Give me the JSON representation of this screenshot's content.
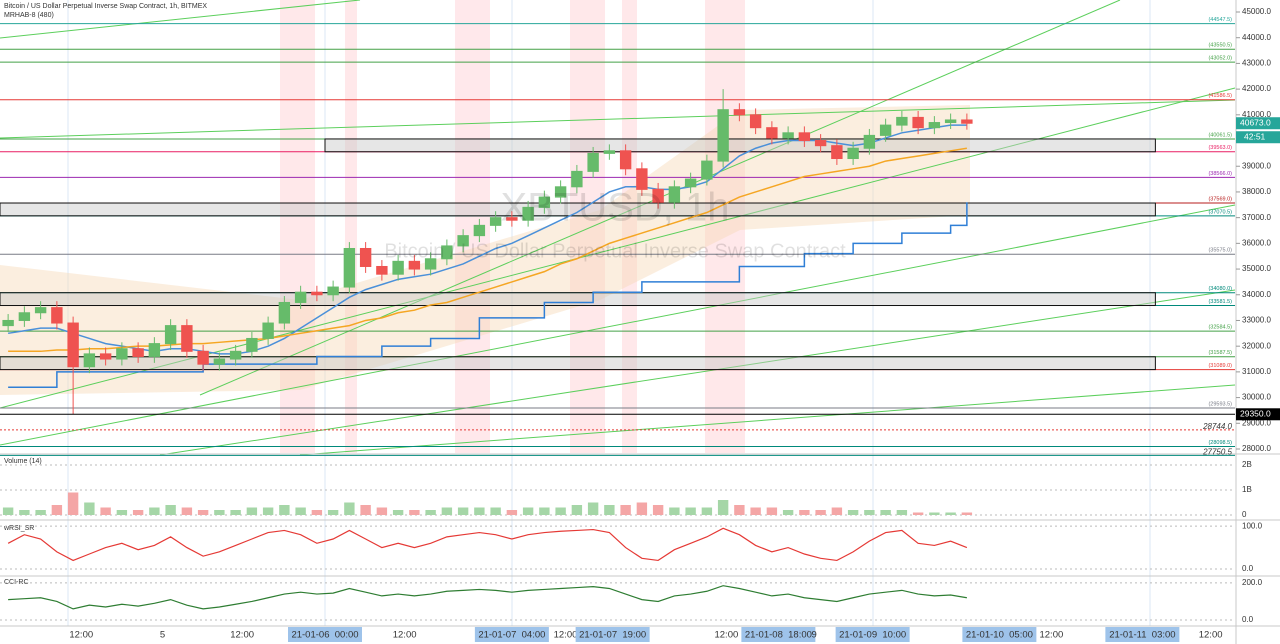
{
  "chart_data": {
    "type": "candlestick",
    "title": "Bitcoin / US Dollar Perpetual Inverse Swap Contract, 1h, BITMEX",
    "subtitle": "MRHAB-8 (480)",
    "watermark": "XBTUSD, 1h",
    "watermark_sub": "Bitcoin / US Dollar Perpetual Inverse Swap Contract",
    "up_color": "#66bb6a",
    "down_color": "#ef5350",
    "open": [
      32800,
      33000,
      33300,
      33500,
      32900,
      31200,
      31700,
      31500,
      31900,
      31600,
      32100,
      32800,
      31800,
      31300,
      31500,
      31800,
      32300,
      32900,
      33700,
      34100,
      34000,
      34300,
      35800,
      35100,
      34800,
      35300,
      35000,
      35400,
      35900,
      36300,
      36700,
      37000,
      36900,
      37400,
      37800,
      38200,
      38800,
      39500,
      39600,
      38900,
      38100,
      37600,
      38200,
      38500,
      39200,
      41200,
      41000,
      40500,
      40100,
      40300,
      40000,
      39800,
      39300,
      39700,
      40200,
      40600,
      40900,
      40500,
      40700,
      40800
    ],
    "high": [
      33250,
      33550,
      33750,
      33750,
      33150,
      31950,
      31950,
      32150,
      32150,
      32350,
      33050,
      33050,
      32050,
      31750,
      32050,
      32550,
      33150,
      33950,
      34350,
      34350,
      34550,
      36050,
      36050,
      35350,
      35550,
      35550,
      35650,
      36150,
      36550,
      36950,
      37250,
      37250,
      37650,
      38050,
      38450,
      39050,
      39750,
      39850,
      39850,
      39150,
      38350,
      38450,
      38750,
      39450,
      42000,
      41450,
      41250,
      40750,
      40550,
      40550,
      40250,
      40050,
      39950,
      40450,
      40850,
      41150,
      41150,
      40950,
      41050,
      41050
    ],
    "low": [
      32550,
      32750,
      33050,
      32650,
      29350,
      30950,
      31250,
      31250,
      31350,
      31350,
      31850,
      31550,
      31050,
      31050,
      31250,
      31550,
      32050,
      32650,
      33450,
      33750,
      33750,
      34050,
      34850,
      34550,
      34550,
      34750,
      34750,
      35150,
      35650,
      36050,
      36450,
      36650,
      36650,
      37150,
      37550,
      37950,
      38550,
      39250,
      38650,
      37850,
      37350,
      37350,
      37950,
      38250,
      38950,
      40750,
      40250,
      39850,
      39850,
      39750,
      39550,
      39050,
      39050,
      39450,
      39950,
      40350,
      40250,
      40250,
      40450,
      40423
    ],
    "close": [
      33000,
      33300,
      33500,
      32900,
      31200,
      31700,
      31500,
      31900,
      31600,
      32100,
      32800,
      31800,
      31300,
      31500,
      31800,
      32300,
      32900,
      33700,
      34100,
      34000,
      34300,
      35800,
      35100,
      34800,
      35300,
      35000,
      35400,
      35900,
      36300,
      36700,
      37000,
      36900,
      37400,
      37800,
      38200,
      38800,
      39500,
      39600,
      38900,
      38100,
      37600,
      38200,
      38500,
      39200,
      41200,
      41000,
      40500,
      40100,
      40300,
      40000,
      39800,
      39300,
      39700,
      40200,
      40600,
      40900,
      40500,
      40700,
      40800,
      40673
    ],
    "xlim": [
      -0.5,
      75.5
    ],
    "ylim": [
      27844,
      45467
    ],
    "yticks": [
      {
        "value": 28000,
        "label": "28000.0"
      },
      {
        "value": 29000,
        "label": "29000.0"
      },
      {
        "value": 30000,
        "label": "30000.0"
      },
      {
        "value": 31000,
        "label": "31000.0"
      },
      {
        "value": 32000,
        "label": "32000.0"
      },
      {
        "value": 33000,
        "label": "33000.0"
      },
      {
        "value": 34000,
        "label": "34000.0"
      },
      {
        "value": 35000,
        "label": "35000.0"
      },
      {
        "value": 36000,
        "label": "36000.0"
      },
      {
        "value": 37000,
        "label": "37000.0"
      },
      {
        "value": 38000,
        "label": "38000.0"
      },
      {
        "value": 39000,
        "label": "39000.0"
      },
      {
        "value": 40000,
        "label": "40000.0"
      },
      {
        "value": 41000,
        "label": "41000.0"
      },
      {
        "value": 42000,
        "label": "42000.0"
      },
      {
        "value": 43000,
        "label": "43000.0"
      },
      {
        "value": 44000,
        "label": "44000.0"
      },
      {
        "value": 45000,
        "label": "45000.0"
      }
    ],
    "xticks": [
      {
        "value": 4.5,
        "label": "12:00"
      },
      {
        "value": 9.5,
        "label": "5"
      },
      {
        "value": 14.4,
        "label": "12:00"
      },
      {
        "value": 19.5,
        "label": "21-01-06  00:00",
        "highlight": true
      },
      {
        "value": 24.4,
        "label": "12:00"
      },
      {
        "value": 31,
        "label": "21-01-07  04:00",
        "highlight": true
      },
      {
        "value": 34.3,
        "label": "12:00"
      },
      {
        "value": 37.2,
        "label": "21-01-07  19:00",
        "highlight": true
      },
      {
        "value": 44.2,
        "label": "12:00"
      },
      {
        "value": 47.4,
        "label": "21-01-08  18:00",
        "highlight": true
      },
      {
        "value": 49.6,
        "label": "9"
      },
      {
        "value": 53.2,
        "label": "21-01-09  10:00",
        "highlight": true
      },
      {
        "value": 61,
        "label": "21-01-10  05:00",
        "highlight": true
      },
      {
        "value": 64.2,
        "label": "12:00"
      },
      {
        "value": 69.8,
        "label": "21-01-11  03:00",
        "highlight": true
      },
      {
        "value": 74,
        "label": "12:00"
      }
    ],
    "overlays": [
      {
        "color": "#4a90d9",
        "step": false,
        "values": [
          32500,
          32600,
          32700,
          32700,
          32500,
          32300,
          32100,
          32000,
          31900,
          31800,
          31900,
          31900,
          31800,
          31700,
          31700,
          31800,
          32000,
          32300,
          32700,
          33100,
          33500,
          33900,
          34200,
          34400,
          34600,
          34700,
          34800,
          35000,
          35200,
          35500,
          35800,
          36000,
          36300,
          36600,
          36900,
          37200,
          37600,
          38000,
          38200,
          38200,
          38100,
          38100,
          38200,
          38400,
          38900,
          39400,
          39700,
          39900,
          40000,
          40000,
          40000,
          39900,
          39800,
          39900,
          40100,
          40300,
          40400,
          40500,
          40600,
          40600
        ]
      },
      {
        "color": "#f5a623",
        "step": false,
        "values": [
          31800,
          31800,
          31800,
          31850,
          31850,
          31900,
          31900,
          31950,
          32000,
          32000,
          32050,
          32100,
          32100,
          32150,
          32200,
          32250,
          32300,
          32400,
          32500,
          32600,
          32700,
          32800,
          33000,
          33100,
          33300,
          33400,
          33600,
          33700,
          33900,
          34100,
          34300,
          34500,
          34700,
          34900,
          35200,
          35400,
          35700,
          36000,
          36200,
          36400,
          36600,
          36800,
          37000,
          37200,
          37500,
          37800,
          38000,
          38200,
          38400,
          38600,
          38700,
          38800,
          38900,
          39000,
          39200,
          39300,
          39400,
          39500,
          39600,
          39700
        ]
      },
      {
        "color": "#2f7fd6",
        "step": true,
        "values": [
          30400,
          30400,
          30400,
          31000,
          31000,
          31000,
          31000,
          31000,
          31000,
          31000,
          31000,
          31000,
          31300,
          31300,
          31300,
          31300,
          31300,
          31300,
          31300,
          31600,
          31600,
          31600,
          31600,
          32000,
          32000,
          32000,
          32300,
          32300,
          32300,
          33100,
          33100,
          33100,
          33100,
          33700,
          33700,
          33700,
          34100,
          34100,
          34100,
          34500,
          34500,
          34500,
          34500,
          34500,
          34500,
          35100,
          35100,
          35100,
          35100,
          35600,
          35600,
          35600,
          36000,
          36000,
          36000,
          36400,
          36400,
          36400,
          36700,
          37600
        ]
      }
    ],
    "levels": [
      {
        "value": 44547.5,
        "label": "(44547.5)",
        "color": "#26a69a"
      },
      {
        "value": 43550.5,
        "label": "(43550.5)",
        "color": "#43a047"
      },
      {
        "value": 43052,
        "label": "(43052.0)",
        "color": "#43a047"
      },
      {
        "value": 41586.5,
        "label": "(41586.5)",
        "color": "#e53935"
      },
      {
        "value": 40061.5,
        "label": "(40061.5)",
        "color": "#43a047"
      },
      {
        "value": 39563,
        "label": "(39563.0)",
        "color": "#e91e63"
      },
      {
        "value": 38566,
        "label": "(38566.0)",
        "color": "#9c27b0"
      },
      {
        "value": 37569,
        "label": "(37569.0)",
        "color": "#b71c1c"
      },
      {
        "value": 37070.5,
        "label": "(37070.5)",
        "color": "#00897b"
      },
      {
        "value": 35575,
        "label": "(35575.0)",
        "color": "#787b86"
      },
      {
        "value": 34080,
        "label": "(34080.0)",
        "color": "#00897b"
      },
      {
        "value": 33581.5,
        "label": "(33581.5)",
        "color": "#00897b"
      },
      {
        "value": 32584.5,
        "label": "(32584.5)",
        "color": "#43a047"
      },
      {
        "value": 31587.5,
        "label": "(31587.5)",
        "color": "#43a047"
      },
      {
        "value": 31089,
        "label": "(31089.0)",
        "color": "#e53935"
      },
      {
        "value": 29593.5,
        "label": "(29593.5)",
        "color": "#787b86"
      },
      {
        "value": 28098.5,
        "label": "(28098.5)",
        "color": "#00897b"
      }
    ],
    "zones": [
      {
        "from": 19.5,
        "to": 70.6,
        "low": 39563,
        "high": 40061.5
      },
      {
        "from": -0.5,
        "to": 70.6,
        "low": 37070.5,
        "high": 37569
      },
      {
        "from": -0.5,
        "to": 70.6,
        "low": 33581.5,
        "high": 34080
      },
      {
        "from": -0.5,
        "to": 70.6,
        "low": 31089,
        "high": 31587.5
      }
    ],
    "last_price": {
      "value": 40673,
      "label": "40673.0",
      "color": "#26a69a"
    },
    "countdown": "42:51",
    "price_marks": [
      {
        "value": 29350,
        "label": "29350.0",
        "color": "#000000"
      },
      {
        "value": 28744,
        "label": "28744.0",
        "color": "#e53935"
      },
      {
        "value": 27750.5,
        "label": "27750.5",
        "color": "#00897b"
      }
    ],
    "volume": {
      "title": "Volume (14)",
      "color": "#f4a6a6",
      "values": [
        300000000.0,
        200000000.0,
        200000000.0,
        400000000.0,
        900000000.0,
        500000000.0,
        300000000.0,
        200000000.0,
        200000000.0,
        300000000.0,
        400000000.0,
        300000000.0,
        200000000.0,
        200000000.0,
        200000000.0,
        300000000.0,
        300000000.0,
        400000000.0,
        300000000.0,
        200000000.0,
        200000000.0,
        500000000.0,
        400000000.0,
        300000000.0,
        200000000.0,
        200000000.0,
        200000000.0,
        300000000.0,
        300000000.0,
        300000000.0,
        300000000.0,
        200000000.0,
        300000000.0,
        300000000.0,
        300000000.0,
        400000000.0,
        500000000.0,
        400000000.0,
        400000000.0,
        500000000.0,
        400000000.0,
        300000000.0,
        300000000.0,
        300000000.0,
        600000000.0,
        400000000.0,
        300000000.0,
        300000000.0,
        200000000.0,
        200000000.0,
        200000000.0,
        300000000.0,
        200000000.0,
        200000000.0,
        200000000.0,
        200000000.0,
        100000000.0,
        100000000.0,
        100000000.0,
        100000000.0
      ],
      "ylim": [
        -160000000.0,
        2400000000.0
      ],
      "yticks": [
        {
          "value": 2000000000.0,
          "label": "2B"
        },
        {
          "value": 1000000000.0,
          "label": "1B"
        },
        0
      ]
    },
    "rsi": {
      "title": "wRSI_SR",
      "color": "#e53935",
      "values": [
        60,
        80,
        70,
        40,
        20,
        35,
        50,
        60,
        45,
        55,
        75,
        50,
        30,
        40,
        55,
        70,
        85,
        90,
        80,
        60,
        70,
        90,
        70,
        50,
        60,
        50,
        60,
        75,
        80,
        85,
        80,
        70,
        80,
        85,
        88,
        90,
        92,
        85,
        50,
        25,
        20,
        45,
        60,
        75,
        95,
        80,
        55,
        40,
        50,
        35,
        25,
        20,
        40,
        65,
        85,
        90,
        60,
        55,
        65,
        50
      ],
      "ylim": [
        -14,
        112
      ],
      "yticks": [
        {
          "value": 100,
          "label": "100.0"
        },
        {
          "value": 0,
          "label": "0.0"
        }
      ]
    },
    "cci": {
      "title": "CCI-RC",
      "color": "#2e7d32",
      "values": [
        110,
        115,
        120,
        100,
        60,
        80,
        70,
        85,
        75,
        90,
        110,
        80,
        60,
        70,
        85,
        100,
        120,
        140,
        150,
        140,
        145,
        170,
        150,
        130,
        140,
        130,
        140,
        155,
        160,
        165,
        160,
        150,
        160,
        165,
        170,
        175,
        180,
        170,
        140,
        110,
        100,
        130,
        140,
        155,
        185,
        170,
        150,
        130,
        140,
        120,
        110,
        100,
        120,
        140,
        150,
        160,
        140,
        130,
        135,
        120
      ],
      "ylim": [
        -27,
        232
      ],
      "yticks": [
        {
          "value": 200,
          "label": "200.0"
        },
        {
          "value": 0,
          "label": "0.0"
        }
      ]
    }
  }
}
